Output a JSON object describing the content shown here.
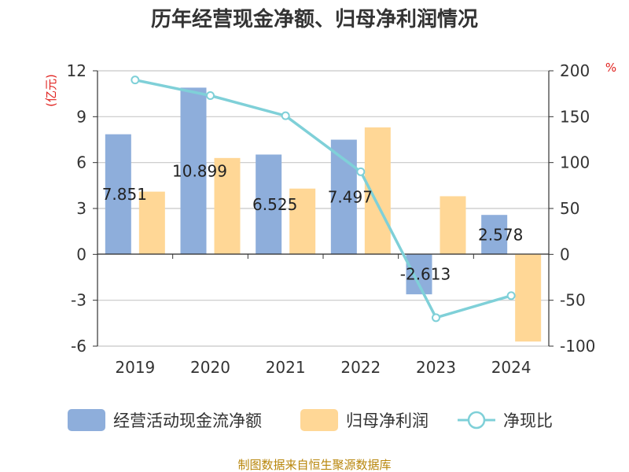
{
  "chart_data": {
    "type": "bar",
    "title": "历年经营现金净额、归母净利润情况",
    "categories": [
      "2019",
      "2020",
      "2021",
      "2022",
      "2023",
      "2024"
    ],
    "series": [
      {
        "name": "经营活动现金流净额",
        "kind": "bar",
        "axis": "left",
        "color": "#8eaedb",
        "values": [
          7.851,
          10.899,
          6.525,
          7.497,
          -2.613,
          2.578
        ],
        "labels": [
          "7.851",
          "10.899",
          "6.525",
          "7.497",
          "-2.613",
          "2.578"
        ]
      },
      {
        "name": "归母净利润",
        "kind": "bar",
        "axis": "left",
        "color": "#ffd796",
        "values": [
          4.1,
          6.3,
          4.3,
          8.3,
          3.8,
          -5.7
        ]
      },
      {
        "name": "净现比",
        "kind": "line",
        "axis": "right",
        "color": "#7fd0d8",
        "values": [
          190,
          173,
          151,
          90,
          -69,
          -45
        ]
      }
    ],
    "yleft": {
      "unit": "(亿元)",
      "ylim": [
        -6,
        12
      ],
      "ticks": [
        "-6",
        "-3",
        "0",
        "3",
        "6",
        "9",
        "12"
      ]
    },
    "yright": {
      "unit": "%",
      "ylim": [
        -100,
        200
      ],
      "ticks": [
        "-100",
        "-50",
        "0",
        "50",
        "100",
        "150",
        "200"
      ]
    },
    "grid": true,
    "legend_position": "bottom"
  },
  "source_text": "制图数据来自恒生聚源数据库"
}
